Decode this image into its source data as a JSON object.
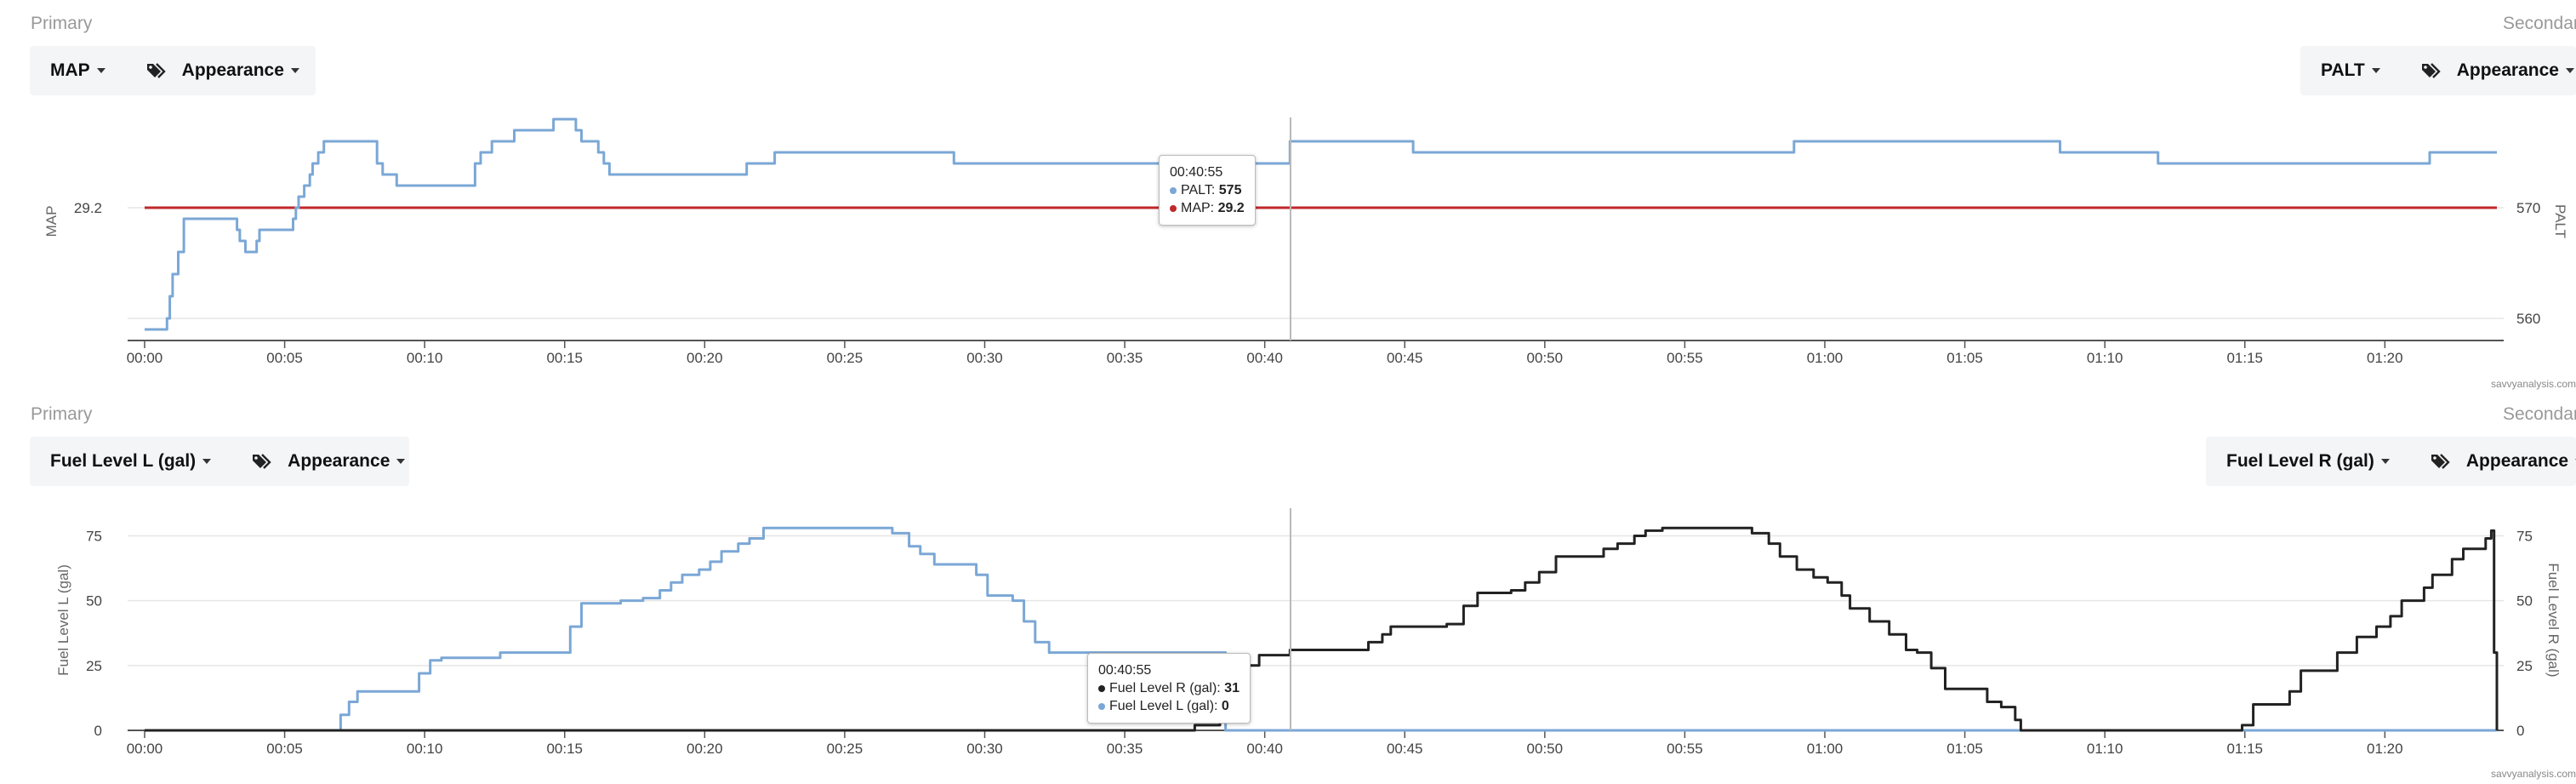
{
  "colors": {
    "blue": "#7ba7d6",
    "red": "#c0282b",
    "black": "#222222",
    "cursor": "#b9b9b9",
    "grid": "#e6e6e6"
  },
  "icons": {
    "appearance": "tag-icon",
    "dropdown": "caret-down-icon"
  },
  "credit": "savvyanalysis.com",
  "panels": [
    {
      "left_section": "Primary",
      "right_section": "Secondary",
      "left_select": "MAP",
      "right_select": "PALT",
      "appearance_label": "Appearance",
      "tooltip": {
        "time": "00:40:55",
        "rows": [
          {
            "label": "PALT: ",
            "value": "575",
            "color": "#7ba7d6"
          },
          {
            "label": "MAP: ",
            "value": "29.2",
            "color": "#c0282b"
          }
        ]
      }
    },
    {
      "left_section": "Primary",
      "right_section": "Secondary",
      "left_select": "Fuel Level L (gal)",
      "right_select": "Fuel Level R (gal)",
      "appearance_label": "Appearance",
      "tooltip": {
        "time": "00:40:55",
        "rows": [
          {
            "label": "Fuel Level R (gal): ",
            "value": "31",
            "color": "#222222"
          },
          {
            "label": "Fuel Level L (gal): ",
            "value": "0",
            "color": "#7ba7d6"
          }
        ]
      }
    }
  ],
  "chart_data": [
    {
      "type": "line",
      "x_unit": "minutes",
      "x_range": [
        0,
        84
      ],
      "x_tick_labels": [
        "00:00",
        "00:05",
        "00:10",
        "00:15",
        "00:20",
        "00:25",
        "00:30",
        "00:35",
        "00:40",
        "00:45",
        "00:50",
        "00:55",
        "01:00",
        "01:05",
        "01:10",
        "01:15",
        "01:20"
      ],
      "cursor_x": 40.92,
      "left_axis": {
        "label": "MAP",
        "range": [
          28.6,
          29.6
        ],
        "ticks": [
          29.2
        ]
      },
      "right_axis": {
        "label": "PALT",
        "range": [
          558,
          578
        ],
        "ticks": [
          560,
          570
        ]
      },
      "series": [
        {
          "name": "MAP",
          "axis": "left",
          "color": "#c0282b",
          "x": [
            0,
            84
          ],
          "y": [
            29.2,
            29.2
          ]
        },
        {
          "name": "PALT",
          "axis": "right",
          "color": "#7ba7d6",
          "x": [
            0,
            0.8,
            0.9,
            1.0,
            1.2,
            1.4,
            3.0,
            3.3,
            3.4,
            3.6,
            3.8,
            3.9,
            4.0,
            4.1,
            4.2,
            4.4,
            4.6,
            5.3,
            5.4,
            5.5,
            5.7,
            5.9,
            6.0,
            6.2,
            6.4,
            8.1,
            8.3,
            8.5,
            9.0,
            11.6,
            11.8,
            12.0,
            12.4,
            12.7,
            13.2,
            14.3,
            14.6,
            15.2,
            15.4,
            15.6,
            16.2,
            16.4,
            16.6,
            16.9,
            21.5,
            22.5,
            28.9,
            40.9,
            45.3,
            47.0,
            58.9,
            59.8,
            67.9,
            68.4,
            71.9,
            81.6,
            84
          ],
          "y": [
            559,
            560,
            562,
            564,
            566,
            569,
            569,
            568,
            567,
            566,
            566,
            566,
            567,
            568,
            568,
            568,
            568,
            569,
            570,
            571,
            572,
            573,
            574,
            575,
            576,
            576,
            574,
            573,
            572,
            572,
            574,
            575,
            576,
            576,
            577,
            577,
            578,
            578,
            577,
            576,
            575,
            574,
            573,
            573,
            574,
            575,
            574,
            576,
            575,
            575,
            576,
            576,
            576,
            575,
            574,
            575,
            575
          ]
        }
      ]
    },
    {
      "type": "line",
      "x_unit": "minutes",
      "x_range": [
        0,
        84
      ],
      "x_tick_labels": [
        "00:00",
        "00:05",
        "00:10",
        "00:15",
        "00:20",
        "00:25",
        "00:30",
        "00:35",
        "00:40",
        "00:45",
        "00:50",
        "00:55",
        "01:00",
        "01:05",
        "01:10",
        "01:15",
        "01:20"
      ],
      "cursor_x": 40.92,
      "left_axis": {
        "label": "Fuel Level L (gal)",
        "range": [
          0,
          85
        ],
        "ticks": [
          0,
          25,
          50,
          75
        ]
      },
      "right_axis": {
        "label": "Fuel Level R (gal)",
        "range": [
          0,
          85
        ],
        "ticks": [
          0,
          25,
          50,
          75
        ]
      },
      "series": [
        {
          "name": "Fuel Level L (gal)",
          "axis": "left",
          "color": "#7ba7d6",
          "x": [
            0,
            6.8,
            7.0,
            7.3,
            7.6,
            9.5,
            9.8,
            10.2,
            10.6,
            12.2,
            12.7,
            14.8,
            15.2,
            15.6,
            17.0,
            17.8,
            18.4,
            18.8,
            19.2,
            19.8,
            20.2,
            20.6,
            21.2,
            21.6,
            22.1,
            26.1,
            26.7,
            27.3,
            27.7,
            28.2,
            29.7,
            30.1,
            31.0,
            31.4,
            31.8,
            32.3,
            38.0,
            38.6,
            84
          ],
          "y": [
            0,
            0,
            6,
            11,
            15,
            15,
            22,
            27,
            28,
            28,
            30,
            30,
            40,
            49,
            50,
            51,
            54,
            57,
            60,
            62,
            65,
            69,
            72,
            74,
            78,
            78,
            76,
            71,
            68,
            64,
            60,
            52,
            50,
            42,
            34,
            30,
            30,
            0,
            0
          ]
        },
        {
          "name": "Fuel Level R (gal)",
          "axis": "right",
          "color": "#222222",
          "x": [
            0,
            37.2,
            37.5,
            38.4,
            39.4,
            39.8,
            40.9,
            43.3,
            43.7,
            44.2,
            44.5,
            45.5,
            46.5,
            47.1,
            47.6,
            48.8,
            49.3,
            49.8,
            50.4,
            52.1,
            52.6,
            53.2,
            53.6,
            54.2,
            56.8,
            57.4,
            58.0,
            58.4,
            59.0,
            59.6,
            60.1,
            60.6,
            60.9,
            61.6,
            62.3,
            62.9,
            63.3,
            63.8,
            64.3,
            65.8,
            66.0,
            66.3,
            66.8,
            67.0,
            74.6,
            74.9,
            75.3,
            76.2,
            76.6,
            77.0,
            78.3,
            78.6,
            79.0,
            79.7,
            80.2,
            80.6,
            81.4,
            81.7,
            82.4,
            82.8,
            83.6,
            83.8,
            83.9,
            84.0
          ],
          "y": [
            0,
            0,
            2,
            10,
            25,
            29,
            31,
            31,
            34,
            37,
            40,
            40,
            41,
            48,
            53,
            54,
            57,
            61,
            67,
            70,
            72,
            75,
            77,
            78,
            78,
            76,
            72,
            67,
            62,
            59,
            57,
            52,
            47,
            42,
            37,
            31,
            30,
            24,
            16,
            11,
            11,
            9,
            4,
            0,
            0,
            2,
            10,
            10,
            15,
            23,
            30,
            30,
            36,
            40,
            44,
            50,
            55,
            60,
            66,
            70,
            74,
            77,
            30,
            0
          ]
        }
      ]
    }
  ]
}
